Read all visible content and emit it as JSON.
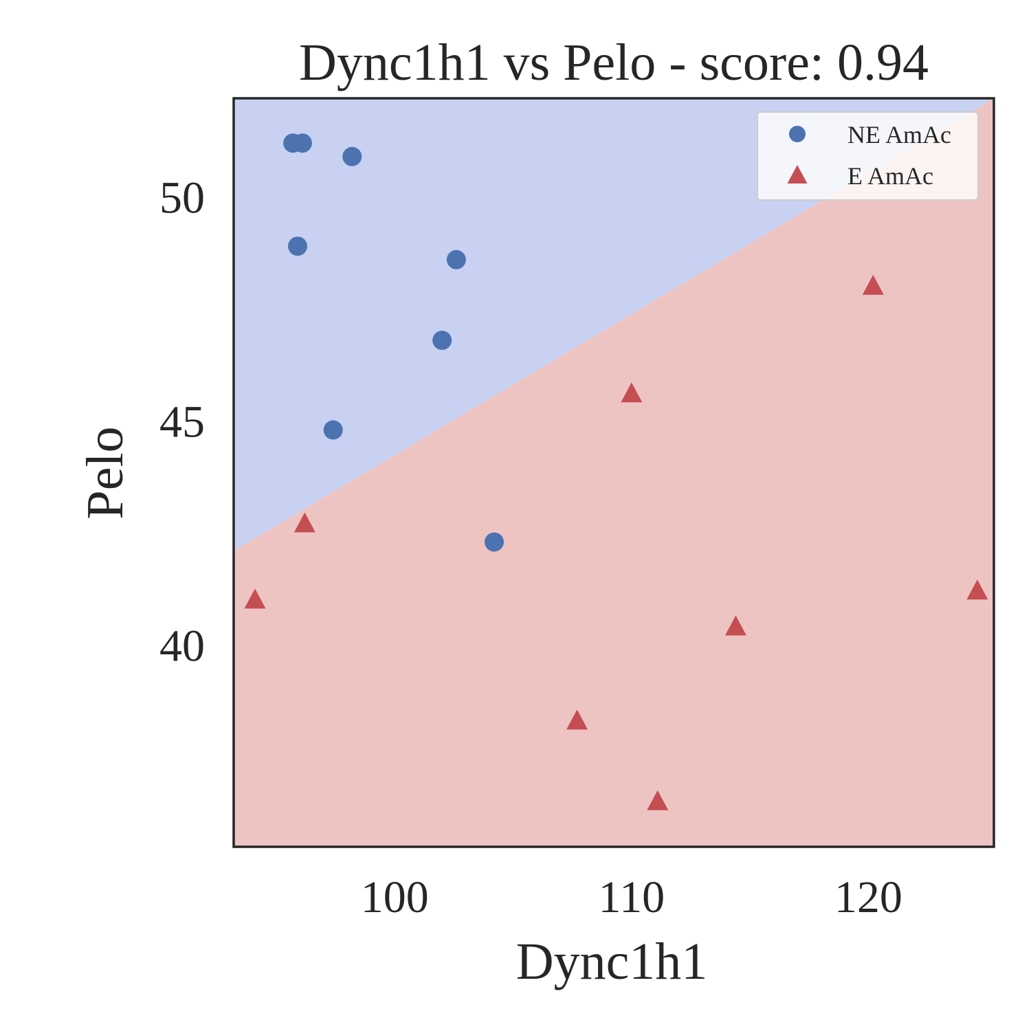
{
  "chart_data": {
    "type": "scatter",
    "title": "Dync1h1 vs Pelo - score: 0.94",
    "xlabel": "Dync1h1",
    "ylabel": "Pelo",
    "xlim": [
      93.2,
      125.3
    ],
    "ylim": [
      35.5,
      52.2
    ],
    "xticks": [
      100,
      110,
      120
    ],
    "yticks": [
      40,
      45,
      50
    ],
    "grid": false,
    "legend_position": "top-right",
    "decision_boundary": {
      "x": [
        93.2,
        125.3
      ],
      "y": [
        42.1,
        52.2
      ],
      "upper_region_color": "#c8d1f1",
      "lower_region_color": "#eec4c3",
      "upper_class": "NE AmAc",
      "lower_class": "E AmAc"
    },
    "series": [
      {
        "name": "NE AmAc",
        "marker": "circle",
        "color": "#4c72b0",
        "points": [
          {
            "x": 95.7,
            "y": 51.2
          },
          {
            "x": 96.1,
            "y": 51.2
          },
          {
            "x": 98.2,
            "y": 50.9
          },
          {
            "x": 95.9,
            "y": 48.9
          },
          {
            "x": 102.6,
            "y": 48.6
          },
          {
            "x": 102.0,
            "y": 46.8
          },
          {
            "x": 97.4,
            "y": 44.8
          },
          {
            "x": 104.2,
            "y": 42.3
          }
        ]
      },
      {
        "name": "E AmAc",
        "marker": "triangle",
        "color": "#c44e52",
        "points": [
          {
            "x": 120.2,
            "y": 48.0
          },
          {
            "x": 110.0,
            "y": 45.6
          },
          {
            "x": 96.2,
            "y": 42.7
          },
          {
            "x": 94.1,
            "y": 41.0
          },
          {
            "x": 124.6,
            "y": 41.2
          },
          {
            "x": 114.4,
            "y": 40.4
          },
          {
            "x": 107.7,
            "y": 38.3
          },
          {
            "x": 111.1,
            "y": 36.5
          }
        ]
      }
    ]
  }
}
